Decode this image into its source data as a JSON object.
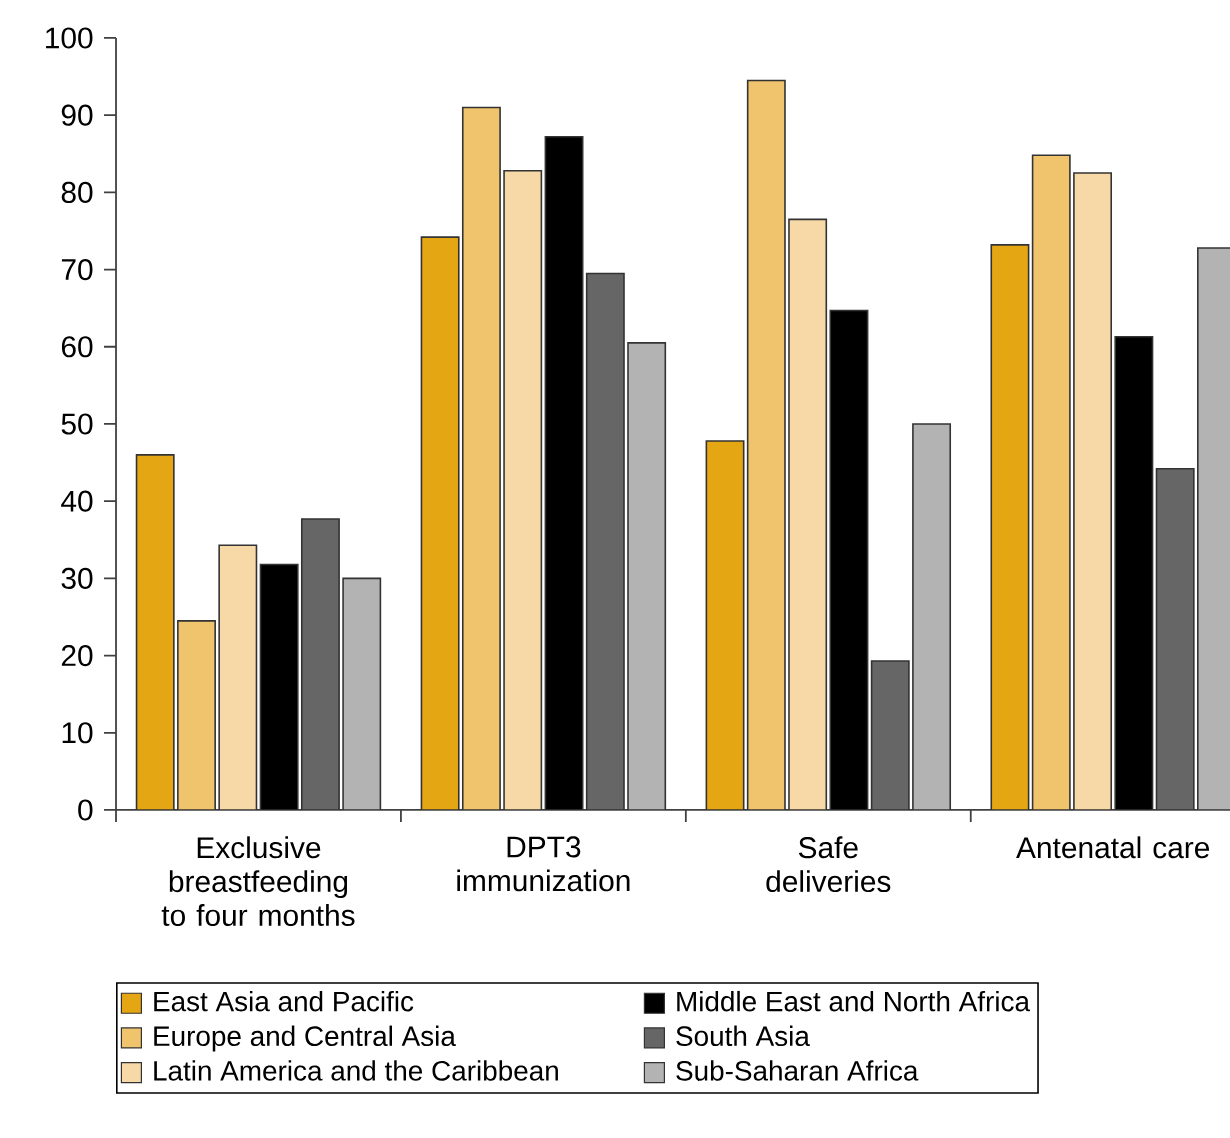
{
  "chart_data": {
    "type": "bar",
    "categories": [
      "Exclusive breastfeeding to four months",
      "DPT3 immunization",
      "Safe deliveries",
      "Antenatal care"
    ],
    "series": [
      {
        "name": "East Asia and Pacific",
        "color": "#e5a614",
        "values": [
          46,
          74.2,
          47.8,
          73.2
        ]
      },
      {
        "name": "Europe and Central Asia",
        "color": "#f0c36d",
        "values": [
          24.5,
          91,
          94.5,
          84.8
        ]
      },
      {
        "name": "Latin America and the Caribbean",
        "color": "#f6d9a7",
        "values": [
          34.3,
          82.8,
          76.5,
          82.5
        ]
      },
      {
        "name": "Middle East and North Africa",
        "color": "#000000",
        "values": [
          31.8,
          87.2,
          64.7,
          61.3
        ]
      },
      {
        "name": "South Asia",
        "color": "#666666",
        "values": [
          37.7,
          69.5,
          19.3,
          44.2
        ]
      },
      {
        "name": "Sub-Saharan Africa",
        "color": "#b3b3b3",
        "values": [
          30,
          60.5,
          50,
          72.8
        ]
      }
    ],
    "ylim": [
      0,
      100
    ],
    "yticks": [
      0,
      10,
      20,
      30,
      40,
      50,
      60,
      70,
      80,
      90,
      100
    ],
    "grid": false,
    "legend": "bottom"
  }
}
